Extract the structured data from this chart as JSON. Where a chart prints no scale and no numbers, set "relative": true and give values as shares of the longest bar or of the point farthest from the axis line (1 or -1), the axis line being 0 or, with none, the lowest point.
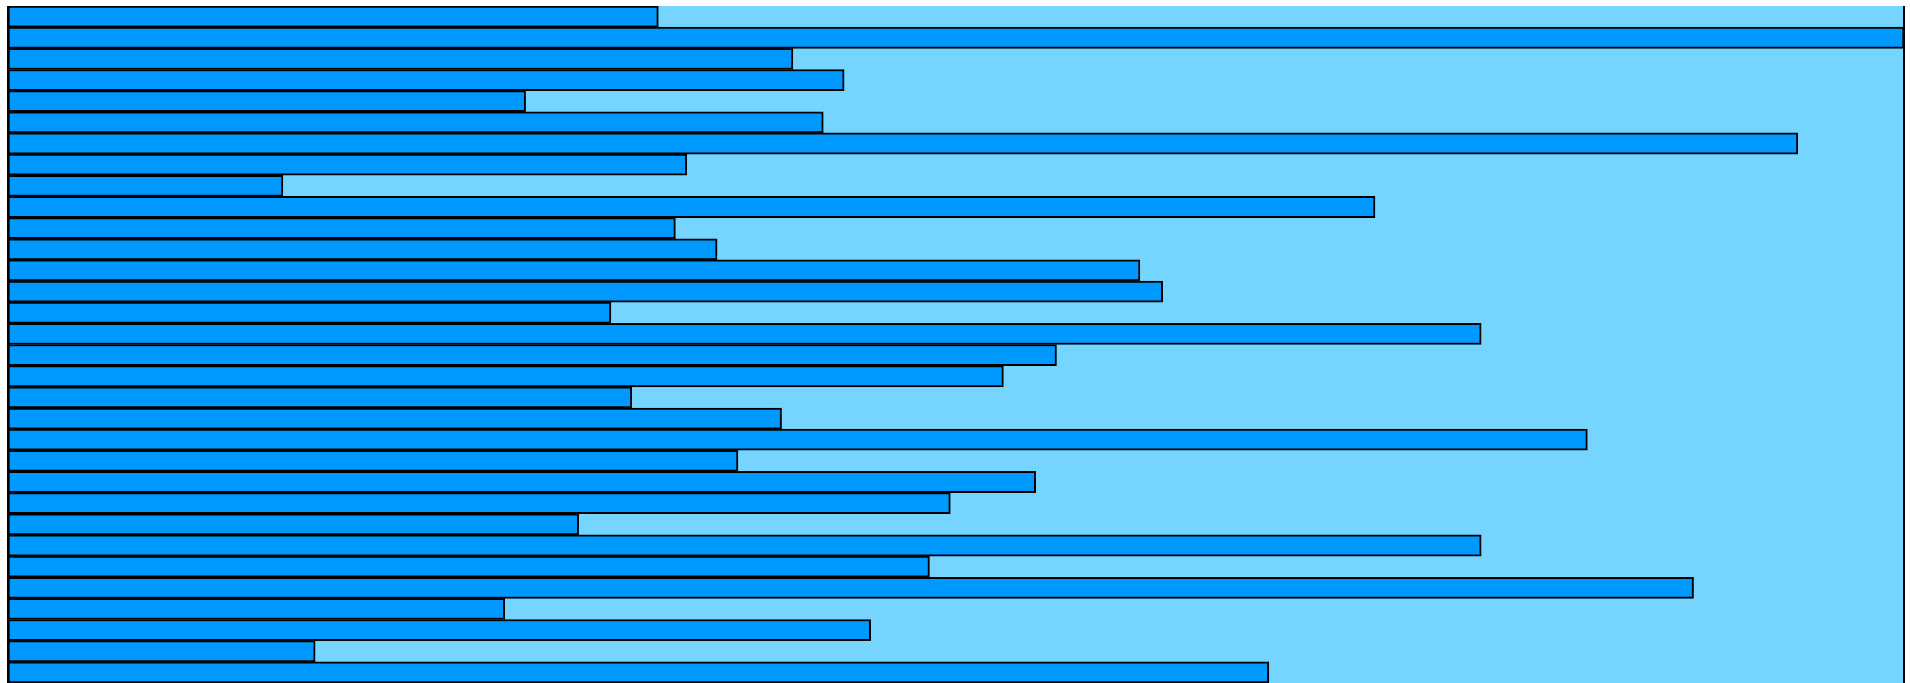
{
  "chart_data": {
    "type": "bar",
    "orientation": "horizontal",
    "relative": true,
    "color": "#0099ff",
    "categories": [
      null,
      null,
      null,
      null,
      null,
      null,
      null,
      null,
      null,
      null,
      null,
      null,
      null,
      null,
      null,
      null,
      null,
      null,
      null,
      null,
      null,
      null,
      null,
      null,
      null,
      null,
      null,
      null,
      null,
      null,
      null,
      null
    ],
    "values": [
      0.343,
      1,
      0.414,
      0.441,
      0.273,
      0.43,
      0.944,
      0.358,
      0.145,
      0.721,
      0.352,
      0.374,
      0.597,
      0.609,
      0.318,
      0.777,
      0.553,
      0.525,
      0.329,
      0.408,
      0.833,
      0.385,
      0.542,
      0.497,
      0.301,
      0.777,
      0.486,
      0.889,
      0.262,
      0.455,
      0.162,
      0.665
    ]
  }
}
